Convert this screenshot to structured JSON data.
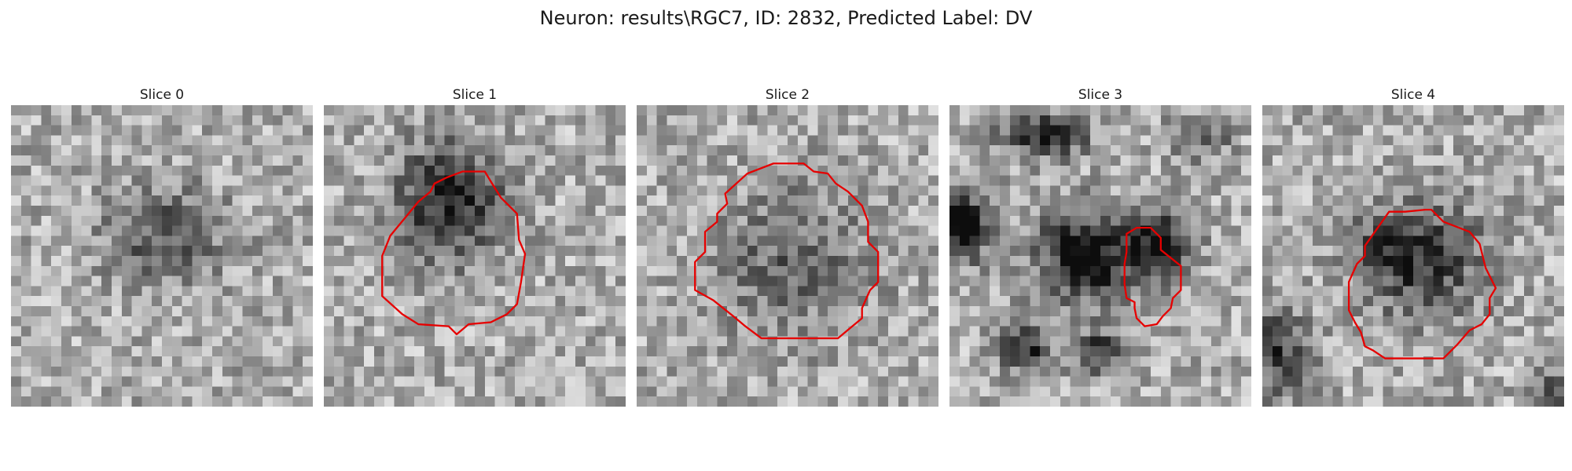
{
  "figure": {
    "title": "Neuron: results\\RGC7, ID: 2832, Predicted Label: DV"
  },
  "panels": [
    {
      "title": "Slice 0",
      "contour": false,
      "blob_strength": 0.35,
      "noise_seed": 11
    },
    {
      "title": "Slice 1",
      "contour": true,
      "blob_strength": 0.55,
      "noise_seed": 23
    },
    {
      "title": "Slice 2",
      "contour": true,
      "blob_strength": 0.35,
      "noise_seed": 37
    },
    {
      "title": "Slice 3",
      "contour": true,
      "blob_strength": 0.75,
      "noise_seed": 51
    },
    {
      "title": "Slice 4",
      "contour": true,
      "blob_strength": 0.5,
      "noise_seed": 67
    }
  ],
  "colors": {
    "contour": "#e60000",
    "background": "#ffffff"
  }
}
